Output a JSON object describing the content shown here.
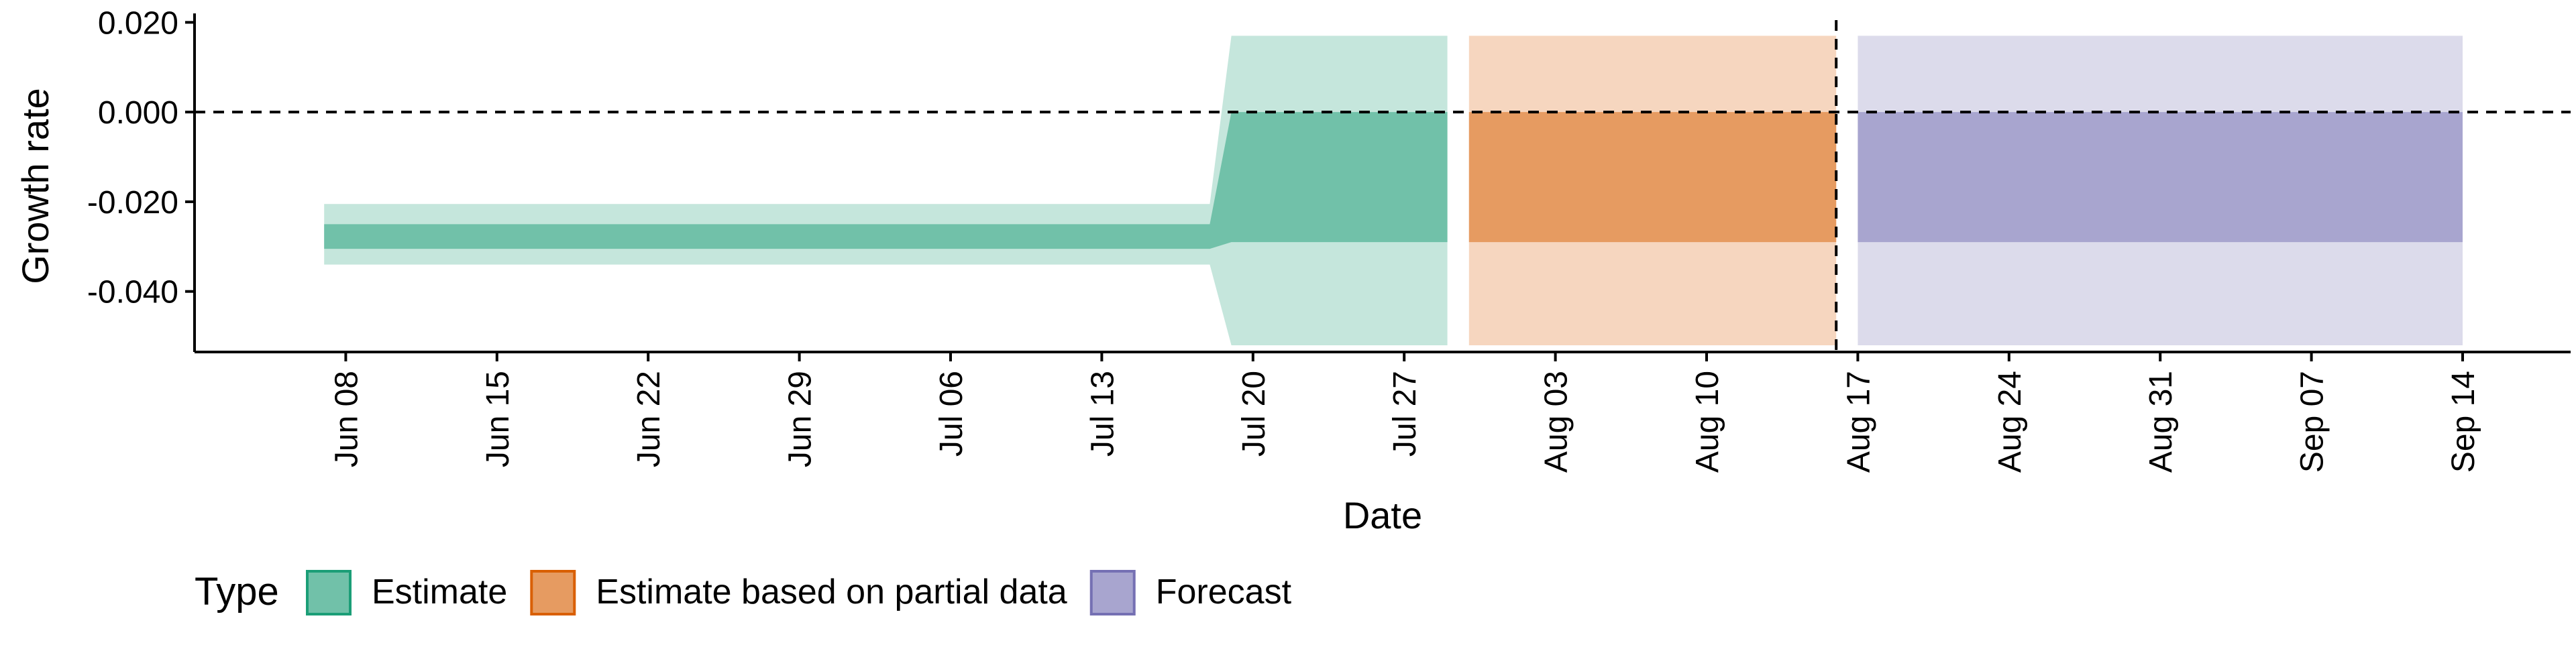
{
  "chart_data": {
    "type": "area",
    "xlabel": "Date",
    "ylabel": "Growth rate",
    "x_range": [
      "2020-06-01",
      "2020-09-19"
    ],
    "ylim": [
      -0.0535,
      0.0205
    ],
    "x_ticks": [
      {
        "date": "2020-06-08",
        "label": "Jun 08"
      },
      {
        "date": "2020-06-15",
        "label": "Jun 15"
      },
      {
        "date": "2020-06-22",
        "label": "Jun 22"
      },
      {
        "date": "2020-06-29",
        "label": "Jun 29"
      },
      {
        "date": "2020-07-06",
        "label": "Jul 06"
      },
      {
        "date": "2020-07-13",
        "label": "Jul 13"
      },
      {
        "date": "2020-07-20",
        "label": "Jul 20"
      },
      {
        "date": "2020-07-27",
        "label": "Jul 27"
      },
      {
        "date": "2020-08-03",
        "label": "Aug 03"
      },
      {
        "date": "2020-08-10",
        "label": "Aug 10"
      },
      {
        "date": "2020-08-17",
        "label": "Aug 17"
      },
      {
        "date": "2020-08-24",
        "label": "Aug 24"
      },
      {
        "date": "2020-08-31",
        "label": "Aug 31"
      },
      {
        "date": "2020-09-07",
        "label": "Sep 07"
      },
      {
        "date": "2020-09-14",
        "label": "Sep 14"
      }
    ],
    "y_ticks": [
      {
        "value": 0.02,
        "label": "0.020"
      },
      {
        "value": 0.0,
        "label": "0.000"
      },
      {
        "value": -0.02,
        "label": "-0.020"
      },
      {
        "value": -0.04,
        "label": "-0.040"
      }
    ],
    "reference_lines": {
      "horizontal_y": 0.0,
      "vertical_date": "2020-08-16"
    },
    "legend": {
      "title": "Type",
      "position": "bottom-left",
      "entries": [
        {
          "label": "Estimate",
          "fill": "#71c1a9",
          "stroke": "#1b9e77"
        },
        {
          "label": "Estimate based on partial data",
          "fill": "#e69b61",
          "stroke": "#d95f02"
        },
        {
          "label": "Forecast",
          "fill": "#a8a5cf",
          "stroke": "#7570b3"
        }
      ]
    },
    "series": [
      {
        "type_label": "Estimate",
        "outer_fill": "#c5e6dc",
        "inner_fill": "#71c1a9",
        "points": [
          {
            "x": "2020-06-07",
            "outer": [
              -0.034,
              -0.0205
            ],
            "inner": [
              -0.0305,
              -0.025
            ]
          },
          {
            "x": "2020-07-18",
            "outer": [
              -0.034,
              -0.0205
            ],
            "inner": [
              -0.0305,
              -0.025
            ]
          },
          {
            "x": "2020-07-19",
            "outer": [
              -0.052,
              0.017
            ],
            "inner": [
              -0.029,
              0.0
            ]
          },
          {
            "x": "2020-07-29",
            "outer": [
              -0.052,
              0.017
            ],
            "inner": [
              -0.029,
              0.0
            ]
          }
        ]
      },
      {
        "type_label": "Estimate based on partial data",
        "outer_fill": "#f6d6bf",
        "inner_fill": "#e69b61",
        "points": [
          {
            "x": "2020-07-30",
            "outer": [
              -0.052,
              0.017
            ],
            "inner": [
              -0.029,
              0.0
            ]
          },
          {
            "x": "2020-08-16",
            "outer": [
              -0.052,
              0.017
            ],
            "inner": [
              -0.029,
              0.0
            ]
          }
        ]
      },
      {
        "type_label": "Forecast",
        "outer_fill": "#dcdbeb",
        "inner_fill": "#a8a5cf",
        "points": [
          {
            "x": "2020-08-17",
            "outer": [
              -0.052,
              0.017
            ],
            "inner": [
              -0.029,
              0.0
            ]
          },
          {
            "x": "2020-09-14",
            "outer": [
              -0.052,
              0.017
            ],
            "inner": [
              -0.029,
              0.0
            ]
          }
        ]
      }
    ]
  }
}
